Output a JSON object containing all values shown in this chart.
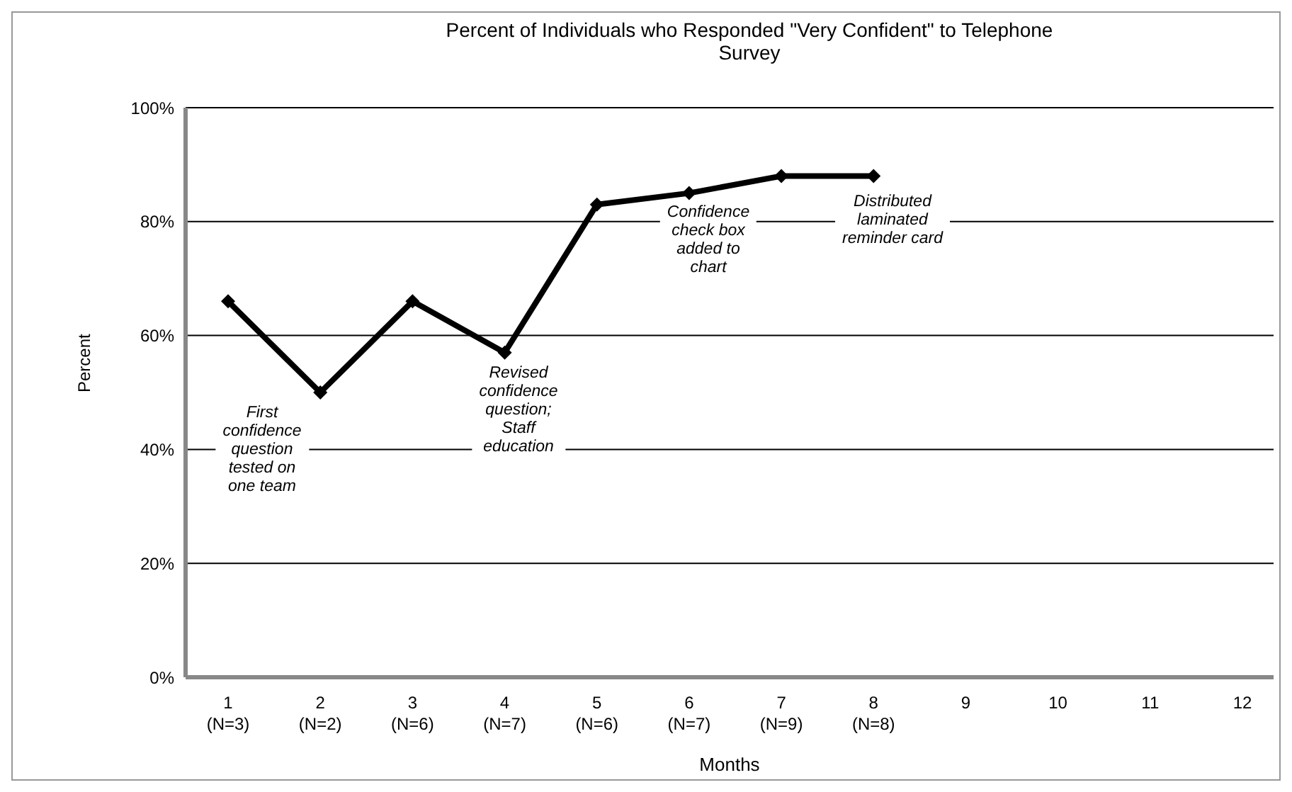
{
  "chart_data": {
    "type": "line",
    "title": "Percent of Individuals who Responded \"Very Confident\" to Telephone\nSurvey",
    "xlabel": "Months",
    "ylabel": "Percent",
    "categories": [
      "1\n(N=3)",
      "2\n(N=2)",
      "3\n(N=6)",
      "4\n(N=7)",
      "5\n(N=6)",
      "6\n(N=7)",
      "7\n(N=9)",
      "8\n(N=8)",
      "9",
      "10",
      "11",
      "12"
    ],
    "series": [
      {
        "color": "#000000",
        "values": [
          66,
          50,
          66,
          57,
          83,
          85,
          88,
          88,
          null,
          null,
          null,
          null
        ]
      }
    ],
    "ylim": [
      0,
      100
    ],
    "yticks": [
      {
        "value": 0,
        "label": "0%"
      },
      {
        "value": 20,
        "label": "20%"
      },
      {
        "value": 40,
        "label": "40%"
      },
      {
        "value": 60,
        "label": "60%"
      },
      {
        "value": 80,
        "label": "80%"
      },
      {
        "value": 100,
        "label": "100%"
      }
    ],
    "grid": "y",
    "marker": "diamond",
    "line_style": "solid",
    "legend": false,
    "annotations": [
      "First\nconfidence\nquestion\ntested on\none team",
      "Revised\nconfidence\nquestion;\nStaff\neducation",
      "Confidence\ncheck box\nadded to\nchart",
      "Distributed\nlaminated\nreminder card"
    ]
  }
}
